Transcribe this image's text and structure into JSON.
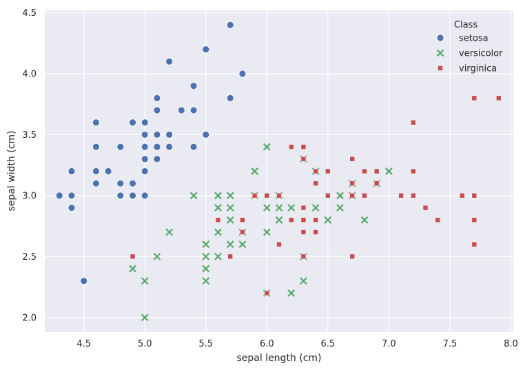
{
  "chart_data": {
    "type": "scatter",
    "title": "",
    "xlabel": "sepal length (cm)",
    "ylabel": "sepal width (cm)",
    "xlim": [
      4.18,
      8.02
    ],
    "ylim": [
      1.88,
      4.52
    ],
    "xticks": [
      4.5,
      5.0,
      5.5,
      6.0,
      6.5,
      7.0,
      7.5,
      8.0
    ],
    "yticks": [
      2.0,
      2.5,
      3.0,
      3.5,
      4.0,
      4.5
    ],
    "grid": true,
    "background": "#eaeaf2",
    "gridColor": "#ffffff",
    "legend": {
      "title": "Class",
      "placement": "top-right"
    },
    "series": [
      {
        "name": "setosa",
        "marker": "circle",
        "color": "#4c72b0",
        "points": [
          [
            4.3,
            3.0
          ],
          [
            4.4,
            2.9
          ],
          [
            4.4,
            3.0
          ],
          [
            4.4,
            3.2
          ],
          [
            4.5,
            2.3
          ],
          [
            4.6,
            3.1
          ],
          [
            4.6,
            3.2
          ],
          [
            4.6,
            3.4
          ],
          [
            4.6,
            3.6
          ],
          [
            4.7,
            3.2
          ],
          [
            4.8,
            3.0
          ],
          [
            4.8,
            3.1
          ],
          [
            4.8,
            3.4
          ],
          [
            4.9,
            3.0
          ],
          [
            4.9,
            3.1
          ],
          [
            4.9,
            3.6
          ],
          [
            5.0,
            3.0
          ],
          [
            5.0,
            3.2
          ],
          [
            5.0,
            3.3
          ],
          [
            5.0,
            3.4
          ],
          [
            5.0,
            3.5
          ],
          [
            5.0,
            3.6
          ],
          [
            5.1,
            3.3
          ],
          [
            5.1,
            3.4
          ],
          [
            5.1,
            3.5
          ],
          [
            5.1,
            3.7
          ],
          [
            5.1,
            3.8
          ],
          [
            5.2,
            3.4
          ],
          [
            5.2,
            3.5
          ],
          [
            5.2,
            4.1
          ],
          [
            5.3,
            3.7
          ],
          [
            5.4,
            3.4
          ],
          [
            5.4,
            3.7
          ],
          [
            5.4,
            3.9
          ],
          [
            5.5,
            3.5
          ],
          [
            5.5,
            4.2
          ],
          [
            5.7,
            3.8
          ],
          [
            5.7,
            4.4
          ],
          [
            5.8,
            4.0
          ]
        ]
      },
      {
        "name": "versicolor",
        "marker": "x",
        "color": "#55a868",
        "points": [
          [
            4.9,
            2.4
          ],
          [
            5.0,
            2.0
          ],
          [
            5.0,
            2.3
          ],
          [
            5.1,
            2.5
          ],
          [
            5.2,
            2.7
          ],
          [
            5.4,
            3.0
          ],
          [
            5.5,
            2.3
          ],
          [
            5.5,
            2.4
          ],
          [
            5.5,
            2.5
          ],
          [
            5.5,
            2.6
          ],
          [
            5.6,
            2.5
          ],
          [
            5.6,
            2.7
          ],
          [
            5.6,
            2.9
          ],
          [
            5.6,
            3.0
          ],
          [
            5.7,
            2.6
          ],
          [
            5.7,
            2.8
          ],
          [
            5.7,
            2.9
          ],
          [
            5.7,
            3.0
          ],
          [
            5.8,
            2.6
          ],
          [
            5.8,
            2.7
          ],
          [
            5.9,
            3.0
          ],
          [
            5.9,
            3.2
          ],
          [
            6.0,
            2.2
          ],
          [
            6.0,
            2.7
          ],
          [
            6.0,
            2.9
          ],
          [
            6.0,
            3.4
          ],
          [
            6.1,
            2.8
          ],
          [
            6.1,
            2.9
          ],
          [
            6.1,
            3.0
          ],
          [
            6.2,
            2.2
          ],
          [
            6.2,
            2.9
          ],
          [
            6.3,
            2.3
          ],
          [
            6.3,
            2.5
          ],
          [
            6.3,
            3.3
          ],
          [
            6.4,
            2.9
          ],
          [
            6.4,
            3.2
          ],
          [
            6.5,
            2.8
          ],
          [
            6.6,
            2.9
          ],
          [
            6.6,
            3.0
          ],
          [
            6.7,
            3.0
          ],
          [
            6.7,
            3.1
          ],
          [
            6.8,
            2.8
          ],
          [
            6.9,
            3.1
          ],
          [
            7.0,
            3.2
          ]
        ]
      },
      {
        "name": "virginica",
        "marker": "square",
        "color": "#c44e52",
        "points": [
          [
            4.9,
            2.5
          ],
          [
            5.6,
            2.8
          ],
          [
            5.7,
            2.5
          ],
          [
            5.8,
            2.7
          ],
          [
            5.8,
            2.8
          ],
          [
            5.9,
            3.0
          ],
          [
            6.0,
            2.2
          ],
          [
            6.0,
            3.0
          ],
          [
            6.1,
            2.6
          ],
          [
            6.1,
            3.0
          ],
          [
            6.2,
            2.8
          ],
          [
            6.2,
            3.4
          ],
          [
            6.3,
            2.5
          ],
          [
            6.3,
            2.7
          ],
          [
            6.3,
            2.8
          ],
          [
            6.3,
            2.9
          ],
          [
            6.3,
            3.3
          ],
          [
            6.3,
            3.4
          ],
          [
            6.4,
            2.7
          ],
          [
            6.4,
            2.8
          ],
          [
            6.4,
            3.1
          ],
          [
            6.4,
            3.2
          ],
          [
            6.5,
            3.0
          ],
          [
            6.5,
            3.2
          ],
          [
            6.7,
            2.5
          ],
          [
            6.7,
            3.0
          ],
          [
            6.7,
            3.1
          ],
          [
            6.7,
            3.3
          ],
          [
            6.8,
            3.0
          ],
          [
            6.8,
            3.2
          ],
          [
            6.9,
            3.1
          ],
          [
            6.9,
            3.2
          ],
          [
            7.1,
            3.0
          ],
          [
            7.2,
            3.0
          ],
          [
            7.2,
            3.2
          ],
          [
            7.2,
            3.6
          ],
          [
            7.3,
            2.9
          ],
          [
            7.4,
            2.8
          ],
          [
            7.6,
            3.0
          ],
          [
            7.7,
            2.6
          ],
          [
            7.7,
            2.8
          ],
          [
            7.7,
            3.0
          ],
          [
            7.7,
            3.8
          ],
          [
            7.9,
            3.8
          ]
        ]
      }
    ]
  }
}
